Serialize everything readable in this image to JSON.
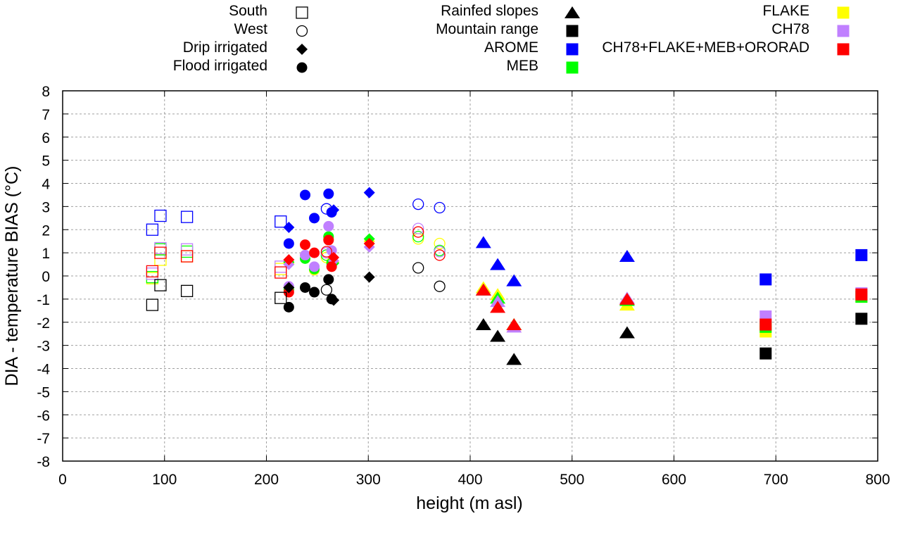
{
  "chart_data": {
    "type": "scatter",
    "title": "",
    "xlabel": "height (m asl)",
    "ylabel": "DIA - temperature BIAS (°C)",
    "xlim": [
      0,
      800
    ],
    "ylim": [
      -8,
      8
    ],
    "xticks": [
      "0",
      "100",
      "200",
      "300",
      "400",
      "500",
      "600",
      "700",
      "800"
    ],
    "yticks": [
      "8",
      "7",
      "6",
      "5",
      "4",
      "3",
      "2",
      "1",
      "0",
      "-1",
      "-2",
      "-3",
      "-4",
      "-5",
      "-6",
      "-7",
      "-8"
    ],
    "grid": true,
    "legend_shapes": [
      {
        "label": "South",
        "shape": "square-open"
      },
      {
        "label": "West",
        "shape": "circle-open"
      },
      {
        "label": "Drip irrigated",
        "shape": "diamond"
      },
      {
        "label": "Flood irrigated",
        "shape": "circle"
      },
      {
        "label": "Rainfed slopes",
        "shape": "triangle"
      },
      {
        "label": "Mountain range",
        "shape": "square"
      }
    ],
    "legend_models": [
      {
        "label": "AROME",
        "color": "#0000ff"
      },
      {
        "label": "MEB",
        "color": "#00ff00"
      },
      {
        "label": "FLAKE",
        "color": "#ffff00"
      },
      {
        "label": "CH78",
        "color": "#c080ff"
      },
      {
        "label": "CH78+FLAKE+MEB+ORORAD",
        "color": "#ff0000"
      }
    ],
    "obs_color": "#000000",
    "series": [
      {
        "name": "South",
        "shape": "square-open",
        "points": [
          {
            "x": 88,
            "model": "OBS",
            "y": -1.25
          },
          {
            "x": 96,
            "model": "OBS",
            "y": -0.4
          },
          {
            "x": 122,
            "model": "OBS",
            "y": -0.65
          },
          {
            "x": 214,
            "model": "OBS",
            "y": -0.95
          },
          {
            "x": 88,
            "model": "AROME",
            "y": 2.0
          },
          {
            "x": 96,
            "model": "AROME",
            "y": 2.6
          },
          {
            "x": 122,
            "model": "AROME",
            "y": 2.55
          },
          {
            "x": 214,
            "model": "AROME",
            "y": 2.35
          },
          {
            "x": 88,
            "model": "FLAKE",
            "y": -0.1
          },
          {
            "x": 96,
            "model": "FLAKE",
            "y": 0.7
          },
          {
            "x": 122,
            "model": "FLAKE",
            "y": 0.85
          },
          {
            "x": 214,
            "model": "FLAKE",
            "y": 0.3
          },
          {
            "x": 88,
            "model": "MEB",
            "y": -0.05
          },
          {
            "x": 96,
            "model": "MEB",
            "y": 1.15
          },
          {
            "x": 122,
            "model": "MEB",
            "y": 1.05
          },
          {
            "x": 88,
            "model": "CH78",
            "y": 0.1
          },
          {
            "x": 96,
            "model": "CH78",
            "y": 1.2
          },
          {
            "x": 122,
            "model": "CH78",
            "y": 1.15
          },
          {
            "x": 214,
            "model": "CH78",
            "y": 0.4
          },
          {
            "x": 88,
            "model": "CH78+FLAKE+MEB+ORORAD",
            "y": 0.2
          },
          {
            "x": 96,
            "model": "CH78+FLAKE+MEB+ORORAD",
            "y": 1.0
          },
          {
            "x": 122,
            "model": "CH78+FLAKE+MEB+ORORAD",
            "y": 0.85
          },
          {
            "x": 214,
            "model": "CH78+FLAKE+MEB+ORORAD",
            "y": 0.15
          }
        ]
      },
      {
        "name": "West",
        "shape": "circle-open",
        "points": [
          {
            "x": 259,
            "model": "OBS",
            "y": -0.6
          },
          {
            "x": 349,
            "model": "OBS",
            "y": 0.35
          },
          {
            "x": 370,
            "model": "OBS",
            "y": -0.45
          },
          {
            "x": 259,
            "model": "AROME",
            "y": 2.9
          },
          {
            "x": 349,
            "model": "AROME",
            "y": 3.1
          },
          {
            "x": 370,
            "model": "AROME",
            "y": 2.95
          },
          {
            "x": 259,
            "model": "FLAKE",
            "y": 0.8
          },
          {
            "x": 349,
            "model": "FLAKE",
            "y": 1.6
          },
          {
            "x": 370,
            "model": "FLAKE",
            "y": 1.4
          },
          {
            "x": 259,
            "model": "MEB",
            "y": 0.9
          },
          {
            "x": 349,
            "model": "MEB",
            "y": 1.7
          },
          {
            "x": 370,
            "model": "MEB",
            "y": 1.1
          },
          {
            "x": 259,
            "model": "CH78",
            "y": 1.0
          },
          {
            "x": 349,
            "model": "CH78",
            "y": 2.05
          },
          {
            "x": 370,
            "model": "CH78",
            "y": 1.05
          },
          {
            "x": 259,
            "model": "CH78+FLAKE+MEB+ORORAD",
            "y": 1.05
          },
          {
            "x": 349,
            "model": "CH78+FLAKE+MEB+ORORAD",
            "y": 1.9
          },
          {
            "x": 370,
            "model": "CH78+FLAKE+MEB+ORORAD",
            "y": 0.9
          }
        ]
      },
      {
        "name": "Drip irrigated",
        "shape": "diamond",
        "points": [
          {
            "x": 222,
            "model": "OBS",
            "y": -0.5
          },
          {
            "x": 266,
            "model": "OBS",
            "y": -1.05
          },
          {
            "x": 301,
            "model": "OBS",
            "y": -0.05
          },
          {
            "x": 222,
            "model": "AROME",
            "y": 2.1
          },
          {
            "x": 266,
            "model": "AROME",
            "y": 2.85
          },
          {
            "x": 301,
            "model": "AROME",
            "y": 3.6
          },
          {
            "x": 222,
            "model": "FLAKE",
            "y": 0.55
          },
          {
            "x": 266,
            "model": "FLAKE",
            "y": 0.6
          },
          {
            "x": 301,
            "model": "FLAKE",
            "y": 1.5
          },
          {
            "x": 222,
            "model": "MEB",
            "y": 0.6
          },
          {
            "x": 266,
            "model": "MEB",
            "y": 0.55
          },
          {
            "x": 301,
            "model": "MEB",
            "y": 1.6
          },
          {
            "x": 222,
            "model": "CH78",
            "y": 0.5
          },
          {
            "x": 266,
            "model": "CH78",
            "y": 0.65
          },
          {
            "x": 301,
            "model": "CH78",
            "y": 1.25
          },
          {
            "x": 222,
            "model": "CH78+FLAKE+MEB+ORORAD",
            "y": 0.7
          },
          {
            "x": 266,
            "model": "CH78+FLAKE+MEB+ORORAD",
            "y": 0.8
          },
          {
            "x": 301,
            "model": "CH78+FLAKE+MEB+ORORAD",
            "y": 1.4
          }
        ]
      },
      {
        "name": "Flood irrigated",
        "shape": "circle",
        "points": [
          {
            "x": 222,
            "model": "OBS",
            "y": -1.35
          },
          {
            "x": 238,
            "model": "OBS",
            "y": -0.5
          },
          {
            "x": 247,
            "model": "OBS",
            "y": -0.7
          },
          {
            "x": 261,
            "model": "OBS",
            "y": -0.15
          },
          {
            "x": 264,
            "model": "OBS",
            "y": -1.0
          },
          {
            "x": 222,
            "model": "AROME",
            "y": 1.4
          },
          {
            "x": 238,
            "model": "AROME",
            "y": 3.5
          },
          {
            "x": 247,
            "model": "AROME",
            "y": 2.5
          },
          {
            "x": 261,
            "model": "AROME",
            "y": 3.55
          },
          {
            "x": 264,
            "model": "AROME",
            "y": 2.75
          },
          {
            "x": 222,
            "model": "FLAKE",
            "y": -0.55
          },
          {
            "x": 238,
            "model": "FLAKE",
            "y": 0.9
          },
          {
            "x": 247,
            "model": "FLAKE",
            "y": 0.25
          },
          {
            "x": 261,
            "model": "FLAKE",
            "y": 1.6
          },
          {
            "x": 264,
            "model": "FLAKE",
            "y": 0.6
          },
          {
            "x": 222,
            "model": "MEB",
            "y": -0.6
          },
          {
            "x": 238,
            "model": "MEB",
            "y": 0.75
          },
          {
            "x": 247,
            "model": "MEB",
            "y": 0.3
          },
          {
            "x": 261,
            "model": "MEB",
            "y": 1.7
          },
          {
            "x": 264,
            "model": "MEB",
            "y": 0.55
          },
          {
            "x": 222,
            "model": "CH78",
            "y": -0.45
          },
          {
            "x": 238,
            "model": "CH78",
            "y": 0.9
          },
          {
            "x": 247,
            "model": "CH78",
            "y": 0.4
          },
          {
            "x": 261,
            "model": "CH78",
            "y": 2.15
          },
          {
            "x": 264,
            "model": "CH78",
            "y": 1.1
          },
          {
            "x": 222,
            "model": "CH78+FLAKE+MEB+ORORAD",
            "y": -0.7
          },
          {
            "x": 238,
            "model": "CH78+FLAKE+MEB+ORORAD",
            "y": 1.35
          },
          {
            "x": 247,
            "model": "CH78+FLAKE+MEB+ORORAD",
            "y": 1.0
          },
          {
            "x": 261,
            "model": "CH78+FLAKE+MEB+ORORAD",
            "y": 1.55
          },
          {
            "x": 264,
            "model": "CH78+FLAKE+MEB+ORORAD",
            "y": 0.4
          }
        ]
      },
      {
        "name": "Rainfed slopes",
        "shape": "triangle",
        "points": [
          {
            "x": 413,
            "model": "OBS",
            "y": -2.1
          },
          {
            "x": 427,
            "model": "OBS",
            "y": -2.6
          },
          {
            "x": 443,
            "model": "OBS",
            "y": -3.6
          },
          {
            "x": 554,
            "model": "OBS",
            "y": -2.45
          },
          {
            "x": 413,
            "model": "AROME",
            "y": 1.45
          },
          {
            "x": 427,
            "model": "AROME",
            "y": 0.5
          },
          {
            "x": 443,
            "model": "AROME",
            "y": -0.2
          },
          {
            "x": 554,
            "model": "AROME",
            "y": 0.85
          },
          {
            "x": 413,
            "model": "FLAKE",
            "y": -0.5
          },
          {
            "x": 427,
            "model": "FLAKE",
            "y": -0.8
          },
          {
            "x": 443,
            "model": "FLAKE",
            "y": -2.1
          },
          {
            "x": 554,
            "model": "FLAKE",
            "y": -1.25
          },
          {
            "x": 413,
            "model": "MEB",
            "y": -0.6
          },
          {
            "x": 427,
            "model": "MEB",
            "y": -0.95
          },
          {
            "x": 443,
            "model": "MEB",
            "y": -2.1
          },
          {
            "x": 554,
            "model": "MEB",
            "y": -1.05
          },
          {
            "x": 413,
            "model": "CH78",
            "y": -0.6
          },
          {
            "x": 427,
            "model": "CH78",
            "y": -1.1
          },
          {
            "x": 443,
            "model": "CH78",
            "y": -2.2
          },
          {
            "x": 554,
            "model": "CH78",
            "y": -0.95
          },
          {
            "x": 413,
            "model": "CH78+FLAKE+MEB+ORORAD",
            "y": -0.6
          },
          {
            "x": 427,
            "model": "CH78+FLAKE+MEB+ORORAD",
            "y": -1.35
          },
          {
            "x": 443,
            "model": "CH78+FLAKE+MEB+ORORAD",
            "y": -2.1
          },
          {
            "x": 554,
            "model": "CH78+FLAKE+MEB+ORORAD",
            "y": -1.0
          }
        ]
      },
      {
        "name": "Mountain range",
        "shape": "square",
        "points": [
          {
            "x": 690,
            "model": "OBS",
            "y": -3.35
          },
          {
            "x": 784,
            "model": "OBS",
            "y": -1.85
          },
          {
            "x": 690,
            "model": "AROME",
            "y": -0.15
          },
          {
            "x": 784,
            "model": "AROME",
            "y": 0.9
          },
          {
            "x": 690,
            "model": "FLAKE",
            "y": -2.4
          },
          {
            "x": 784,
            "model": "FLAKE",
            "y": -0.9
          },
          {
            "x": 690,
            "model": "MEB",
            "y": -2.2
          },
          {
            "x": 784,
            "model": "MEB",
            "y": -0.9
          },
          {
            "x": 690,
            "model": "CH78",
            "y": -1.75
          },
          {
            "x": 784,
            "model": "CH78",
            "y": -0.75
          },
          {
            "x": 690,
            "model": "CH78+FLAKE+MEB+ORORAD",
            "y": -2.1
          },
          {
            "x": 784,
            "model": "CH78+FLAKE+MEB+ORORAD",
            "y": -0.8
          }
        ]
      }
    ]
  }
}
